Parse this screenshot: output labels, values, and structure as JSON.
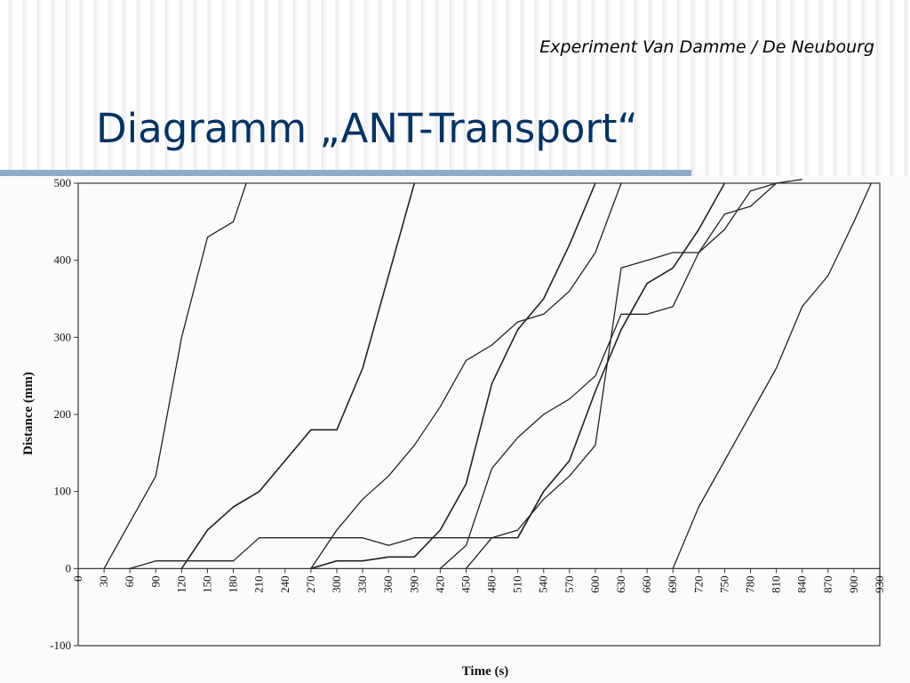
{
  "header": {
    "subtitle": "Experiment Van Damme / De Neubourg",
    "title": "Diagramm „ANT-Transport“"
  },
  "colors": {
    "title": "#003366",
    "divider": "#8fa9c7",
    "line": "#222222"
  },
  "chart_data": {
    "type": "line",
    "title": "",
    "xlabel": "Time (s)",
    "ylabel": "Distance (mm)",
    "xlim": [
      0,
      930
    ],
    "ylim": [
      -100,
      500
    ],
    "xticks": [
      0,
      30,
      60,
      90,
      120,
      150,
      180,
      210,
      240,
      270,
      300,
      330,
      360,
      390,
      420,
      450,
      480,
      510,
      540,
      570,
      600,
      630,
      660,
      690,
      720,
      750,
      780,
      810,
      840,
      870,
      900,
      930
    ],
    "yticks": [
      -100,
      0,
      100,
      200,
      300,
      400,
      500
    ],
    "grid": false,
    "legend": "none",
    "series": [
      {
        "x": [
          30,
          60,
          90,
          120,
          150,
          180,
          195
        ],
        "y": [
          0,
          60,
          120,
          300,
          430,
          450,
          500
        ]
      },
      {
        "x": [
          120,
          150,
          180,
          210,
          240,
          270,
          300,
          330,
          360,
          390
        ],
        "y": [
          0,
          50,
          80,
          100,
          140,
          180,
          180,
          260,
          380,
          500
        ]
      },
      {
        "x": [
          60,
          90,
          120,
          150,
          180,
          210,
          240,
          270,
          300,
          330,
          360,
          390,
          420,
          450,
          480,
          510,
          540
        ],
        "y": [
          0,
          10,
          10,
          10,
          10,
          40,
          40,
          40,
          40,
          40,
          30,
          40,
          40,
          40,
          40,
          40,
          100
        ]
      },
      {
        "x": [
          270,
          300,
          330,
          360,
          390,
          420,
          450,
          480,
          510,
          540,
          570,
          600,
          630
        ],
        "y": [
          0,
          50,
          90,
          120,
          160,
          210,
          270,
          290,
          320,
          330,
          360,
          410,
          500
        ]
      },
      {
        "x": [
          270,
          300,
          330,
          360,
          390,
          420,
          450,
          480,
          510,
          540,
          570,
          600
        ],
        "y": [
          0,
          10,
          10,
          15,
          15,
          50,
          110,
          240,
          310,
          350,
          420,
          500
        ]
      },
      {
        "x": [
          420,
          450,
          480,
          510,
          540,
          570,
          600,
          630,
          660,
          690,
          720,
          750,
          780,
          810,
          840
        ],
        "y": [
          0,
          30,
          130,
          170,
          200,
          220,
          250,
          330,
          330,
          340,
          410,
          440,
          490,
          500,
          505
        ]
      },
      {
        "x": [
          450,
          480,
          510,
          540,
          570,
          600,
          630,
          660,
          690,
          720,
          750,
          780,
          810
        ],
        "y": [
          0,
          40,
          50,
          90,
          120,
          160,
          390,
          400,
          410,
          410,
          460,
          470,
          500
        ]
      },
      {
        "x": [
          510,
          540,
          570,
          600,
          630,
          660,
          690,
          720,
          750
        ],
        "y": [
          40,
          100,
          140,
          230,
          310,
          370,
          390,
          440,
          500
        ]
      },
      {
        "x": [
          690,
          720,
          750,
          780,
          810,
          840,
          870,
          900,
          920
        ],
        "y": [
          0,
          80,
          140,
          200,
          260,
          340,
          380,
          450,
          500
        ]
      }
    ]
  }
}
